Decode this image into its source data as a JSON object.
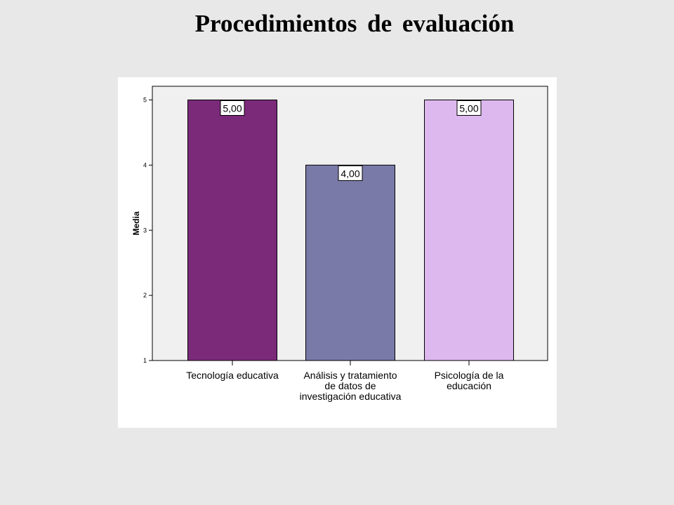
{
  "slide": {
    "title": "Procedimientos de evaluación"
  },
  "chart_data": {
    "type": "bar",
    "categories": [
      [
        "Tecnología educativa"
      ],
      [
        "Análisis y tratamiento",
        "de datos de",
        "investigación educativa"
      ],
      [
        "Psicología de la",
        "educación"
      ]
    ],
    "values": [
      5,
      4,
      5
    ],
    "value_labels": [
      "5,00",
      "4,00",
      "5,00"
    ],
    "colors": [
      "#7b2a7a",
      "#7a7aa8",
      "#ddb8ef"
    ],
    "xlabel": "",
    "ylabel": "Media",
    "ylim": [
      1,
      5.3
    ],
    "yticks": [
      "1",
      "2",
      "3",
      "4",
      "5"
    ],
    "grid": false,
    "legend": "none",
    "plot_background": "#f0f0f0"
  }
}
